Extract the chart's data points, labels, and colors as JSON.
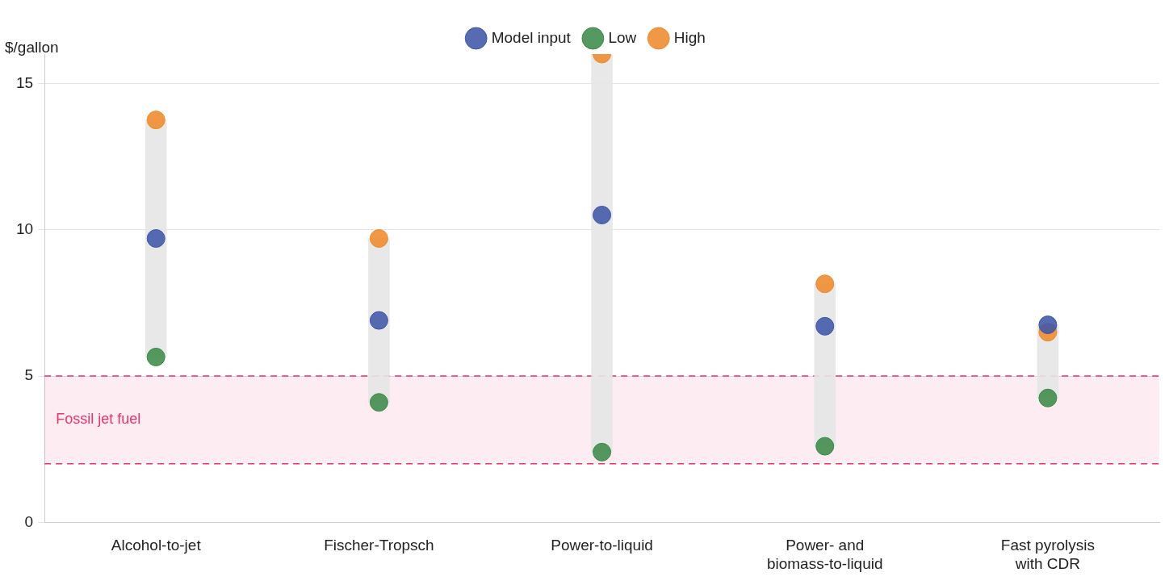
{
  "chart_data": {
    "type": "scatter",
    "ylabel": "$/gallon",
    "categories": [
      "Alcohol-to-jet",
      "Fischer-Tropsch",
      "Power-to-liquid",
      "Power- and biomass-to-liquid",
      "Fast pyrolysis with CDR"
    ],
    "series": [
      {
        "type": "bar",
        "color": "#e6e6e6",
        "base": [
          5.65,
          4.1,
          2.4,
          2.6,
          4.25
        ],
        "values": [
          8.1,
          5.6,
          13.6,
          5.55,
          2.5
        ]
      },
      {
        "name": "Model input",
        "color": "#3f57a6",
        "values": [
          9.7,
          6.9,
          10.5,
          6.7,
          6.75
        ]
      },
      {
        "name": "Low",
        "color": "#3d8a4a",
        "values": [
          5.65,
          4.1,
          2.4,
          2.6,
          4.25
        ]
      },
      {
        "name": "High",
        "color": "#ef8a2e",
        "values": [
          13.75,
          9.7,
          16.0,
          8.15,
          6.5
        ]
      }
    ],
    "ylim": [
      0,
      16
    ],
    "yticks": [
      0,
      5,
      10,
      15
    ],
    "grid": "y",
    "legend": "top",
    "marker": "circle",
    "ref_lines": [
      {
        "axis": "y",
        "value": 5,
        "color": "#e8336b",
        "line_style": "dashed"
      },
      {
        "axis": "y",
        "value": 2,
        "color": "#e8336b",
        "line_style": "dashed"
      }
    ],
    "bands": [
      {
        "axis": "y",
        "from": 2,
        "to": 5,
        "label": "Fossil jet fuel",
        "color": "#e8336b"
      }
    ]
  }
}
